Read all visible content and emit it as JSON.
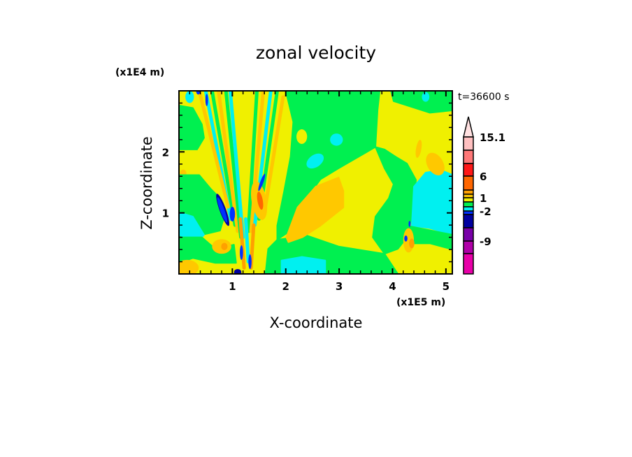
{
  "chart_data": {
    "type": "heatmap",
    "subtype": "filled-contour",
    "title": "zonal velocity",
    "xlabel": "X-coordinate",
    "ylabel": "Z-coordinate",
    "x_scale_label": "(x1E5 m)",
    "y_scale_label": "(x1E4 m)",
    "time_label": "t=36600 s",
    "xlim": [
      0,
      5.12
    ],
    "ylim": [
      0,
      3.0
    ],
    "xticks": [
      1,
      2,
      3,
      4,
      5
    ],
    "xtick_labels": [
      "1",
      "2",
      "3",
      "4",
      "5"
    ],
    "yticks": [
      1,
      2
    ],
    "ytick_labels": [
      "1",
      "2"
    ],
    "colorbar": {
      "labels": [
        {
          "text": "15.1",
          "at_boundary": 0
        },
        {
          "text": "6",
          "at_boundary": 3
        },
        {
          "text": "1",
          "at_boundary": 6
        },
        {
          "text": "-2",
          "at_boundary": 9
        },
        {
          "text": "-9",
          "at_boundary": 12
        }
      ],
      "overflow_color": "#ffe0e0",
      "colors": [
        "#ffc0c0",
        "#ff7878",
        "#ff1818",
        "#ff6600",
        "#ffa000",
        "#ffc800",
        "#f0f000",
        "#00f050",
        "#00f0f0",
        "#0030ff",
        "#0000a0",
        "#7800a8",
        "#b000a8",
        "#e800a8"
      ]
    },
    "level_colors": {
      "yellow": "#f0f000",
      "gold": "#ffc800",
      "orange": "#ffa000",
      "darkorange": "#ff6600",
      "green": "#00f050",
      "cyan": "#00f0f0",
      "blue": "#0030ff",
      "darkblue": "#0000a0"
    },
    "background_level": "yellow",
    "regions": [
      {
        "level": "green",
        "points": [
          [
            2.0,
            3.0
          ],
          [
            3.76,
            3.0
          ],
          [
            3.72,
            2.68
          ],
          [
            3.68,
            2.08
          ],
          [
            2.99,
            1.73
          ],
          [
            2.65,
            1.55
          ],
          [
            2.39,
            1.24
          ],
          [
            2.09,
            0.71
          ],
          [
            1.84,
            0.56
          ],
          [
            1.84,
            0.79
          ],
          [
            1.97,
            1.36
          ],
          [
            2.09,
            1.92
          ],
          [
            2.14,
            2.49
          ]
        ]
      },
      {
        "level": "yellow",
        "ellipse": [
          2.3,
          2.25,
          0.1,
          0.12,
          0
        ]
      },
      {
        "level": "cyan",
        "ellipse": [
          2.55,
          1.85,
          0.18,
          0.1,
          -35
        ]
      },
      {
        "level": "cyan",
        "ellipse": [
          2.95,
          2.2,
          0.12,
          0.1,
          0
        ]
      },
      {
        "level": "green",
        "points": [
          [
            3.68,
            2.08
          ],
          [
            3.85,
            1.73
          ],
          [
            4.02,
            1.47
          ],
          [
            3.93,
            1.24
          ],
          [
            3.68,
            0.94
          ],
          [
            3.63,
            0.6
          ],
          [
            3.85,
            0.33
          ],
          [
            4.1,
            0.41
          ],
          [
            4.27,
            0.6
          ],
          [
            4.36,
            0.94
          ],
          [
            4.44,
            1.54
          ],
          [
            4.27,
            1.81
          ],
          [
            4.06,
            1.92
          ],
          [
            3.85,
            2.04
          ]
        ]
      },
      {
        "level": "cyan",
        "points": [
          [
            4.4,
            1.43
          ],
          [
            4.62,
            1.66
          ],
          [
            4.91,
            1.7
          ],
          [
            5.13,
            1.62
          ],
          [
            5.13,
            0.64
          ],
          [
            4.7,
            0.75
          ],
          [
            4.36,
            0.79
          ],
          [
            4.38,
            1.1
          ]
        ]
      },
      {
        "level": "green",
        "points": [
          [
            4.27,
            0.79
          ],
          [
            5.13,
            0.64
          ],
          [
            5.13,
            0.4
          ],
          [
            4.7,
            0.5
          ],
          [
            4.3,
            0.5
          ]
        ]
      },
      {
        "level": "green",
        "points": [
          [
            3.97,
            3.0
          ],
          [
            5.13,
            3.0
          ],
          [
            5.13,
            2.68
          ],
          [
            4.7,
            2.64
          ],
          [
            4.27,
            2.76
          ],
          [
            4.02,
            2.83
          ]
        ]
      },
      {
        "level": "cyan",
        "ellipse": [
          4.62,
          2.9,
          0.07,
          0.08,
          0
        ]
      },
      {
        "level": "gold",
        "ellipse": [
          4.49,
          2.05,
          0.05,
          0.15,
          10
        ]
      },
      {
        "level": "gold",
        "ellipse": [
          4.8,
          1.8,
          0.15,
          0.2,
          -30
        ]
      },
      {
        "level": "green",
        "points": [
          [
            1.84,
            0.56
          ],
          [
            2.39,
            0.63
          ],
          [
            2.99,
            0.45
          ],
          [
            3.85,
            0.33
          ],
          [
            4.1,
            0.0
          ],
          [
            1.62,
            0.0
          ],
          [
            1.67,
            0.41
          ]
        ]
      },
      {
        "level": "cyan",
        "points": [
          [
            1.92,
            0.22
          ],
          [
            2.3,
            0.28
          ],
          [
            2.74,
            0.22
          ],
          [
            2.74,
            0.0
          ],
          [
            1.92,
            0.0
          ]
        ]
      },
      {
        "level": "gold",
        "points": [
          [
            2.01,
            0.6
          ],
          [
            2.22,
            1.09
          ],
          [
            2.56,
            1.43
          ],
          [
            2.99,
            1.58
          ],
          [
            3.08,
            1.36
          ],
          [
            3.08,
            1.09
          ],
          [
            2.65,
            0.79
          ],
          [
            2.31,
            0.6
          ],
          [
            2.05,
            0.52
          ]
        ]
      },
      {
        "level": "green",
        "points": [
          [
            0,
            2.76
          ],
          [
            0.26,
            2.72
          ],
          [
            0.43,
            2.45
          ],
          [
            0.47,
            2.23
          ],
          [
            0.34,
            2.04
          ],
          [
            0,
            2.04
          ]
        ]
      },
      {
        "level": "cyan",
        "ellipse": [
          0.2,
          2.9,
          0.08,
          0.1,
          0
        ]
      },
      {
        "level": "gold",
        "ellipse": [
          0.08,
          1.65,
          0.06,
          0.06,
          0
        ]
      },
      {
        "level": "green",
        "points": [
          [
            0,
            1.62
          ],
          [
            0.38,
            1.62
          ],
          [
            0.6,
            1.39
          ],
          [
            0.77,
            1.24
          ],
          [
            0.85,
            0.94
          ],
          [
            0.77,
            0.71
          ],
          [
            0.43,
            0.64
          ],
          [
            0,
            0.6
          ]
        ]
      },
      {
        "level": "cyan",
        "points": [
          [
            0,
            1.01
          ],
          [
            0.26,
            0.94
          ],
          [
            0.47,
            0.64
          ],
          [
            0.34,
            0.52
          ],
          [
            0,
            0.64
          ]
        ]
      },
      {
        "level": "green",
        "points": [
          [
            0,
            0.6
          ],
          [
            0.43,
            0.6
          ],
          [
            0.68,
            0.41
          ],
          [
            1.03,
            0.48
          ],
          [
            1.07,
            0.18
          ],
          [
            0.68,
            0.18
          ],
          [
            0.26,
            0.26
          ],
          [
            0,
            0.18
          ]
        ]
      },
      {
        "level": "gold",
        "ellipse": [
          0.15,
          0.1,
          0.22,
          0.13,
          0
        ]
      },
      {
        "level": "gold",
        "ellipse": [
          0.8,
          0.45,
          0.18,
          0.12,
          0
        ]
      },
      {
        "level": "orange",
        "ellipse": [
          0.85,
          0.45,
          0.06,
          0.06,
          0
        ]
      }
    ],
    "stripes": [
      {
        "level": "cyan",
        "from": [
          0.5,
          3.0
        ],
        "to": [
          0.97,
          0.9
        ]
      },
      {
        "level": "gold",
        "from": [
          0.38,
          3.0
        ],
        "to": [
          0.92,
          1.1
        ]
      },
      {
        "level": "green",
        "from": [
          0.62,
          3.0
        ],
        "to": [
          1.05,
          0.8
        ]
      },
      {
        "level": "gold",
        "from": [
          0.74,
          3.0
        ],
        "to": [
          1.1,
          0.7
        ]
      },
      {
        "level": "green",
        "from": [
          0.88,
          3.0
        ],
        "to": [
          1.16,
          0.6
        ]
      },
      {
        "level": "cyan",
        "from": [
          0.96,
          3.0
        ],
        "to": [
          1.2,
          0.6
        ]
      },
      {
        "level": "green",
        "from": [
          1.46,
          3.0
        ],
        "to": [
          1.3,
          0.7
        ]
      },
      {
        "level": "gold",
        "from": [
          1.58,
          3.0
        ],
        "to": [
          1.35,
          0.7
        ]
      },
      {
        "level": "cyan",
        "from": [
          1.72,
          3.0
        ],
        "to": [
          1.42,
          0.8
        ]
      },
      {
        "level": "green",
        "from": [
          1.84,
          3.0
        ],
        "to": [
          1.5,
          0.9
        ]
      },
      {
        "level": "gold",
        "from": [
          1.95,
          2.9
        ],
        "to": [
          1.6,
          1.0
        ]
      },
      {
        "level": "cyan",
        "from": [
          1.25,
          0.9
        ],
        "to": [
          1.3,
          0.2
        ]
      },
      {
        "level": "orange",
        "from": [
          1.15,
          0.9
        ],
        "to": [
          1.22,
          0.1
        ]
      },
      {
        "level": "orange",
        "from": [
          1.4,
          0.8
        ],
        "to": [
          1.35,
          0.1
        ]
      }
    ],
    "blobs": [
      {
        "level": "gold",
        "ellipse": [
          1.5,
          1.2,
          0.14,
          0.32,
          -10
        ]
      },
      {
        "level": "darkorange",
        "ellipse": [
          1.52,
          1.2,
          0.05,
          0.15,
          -10
        ]
      },
      {
        "level": "darkblue",
        "ellipse": [
          0.82,
          1.05,
          0.06,
          0.28,
          -20
        ]
      },
      {
        "level": "blue",
        "ellipse": [
          0.81,
          1.05,
          0.04,
          0.22,
          -20
        ]
      },
      {
        "level": "blue",
        "ellipse": [
          1.0,
          0.98,
          0.05,
          0.12,
          0
        ]
      },
      {
        "level": "blue",
        "ellipse": [
          1.17,
          0.35,
          0.03,
          0.12,
          0
        ]
      },
      {
        "level": "blue",
        "ellipse": [
          1.33,
          0.2,
          0.03,
          0.12,
          0
        ]
      },
      {
        "level": "blue",
        "ellipse": [
          1.55,
          1.5,
          0.03,
          0.15,
          20
        ]
      },
      {
        "level": "blue",
        "ellipse": [
          0.52,
          2.85,
          0.025,
          0.1,
          0
        ]
      },
      {
        "level": "blue",
        "ellipse": [
          0.36,
          3.0,
          0.04,
          0.06,
          0
        ]
      },
      {
        "level": "darkblue",
        "ellipse": [
          1.1,
          0.03,
          0.07,
          0.05,
          0
        ]
      },
      {
        "level": "gold",
        "ellipse": [
          4.3,
          0.55,
          0.1,
          0.2,
          0
        ]
      },
      {
        "level": "blue",
        "ellipse": [
          4.25,
          0.58,
          0.03,
          0.05,
          0
        ]
      },
      {
        "level": "blue",
        "ellipse": [
          4.32,
          0.82,
          0.02,
          0.05,
          0
        ]
      },
      {
        "level": "orange",
        "ellipse": [
          4.36,
          0.5,
          0.05,
          0.08,
          0
        ]
      }
    ]
  }
}
